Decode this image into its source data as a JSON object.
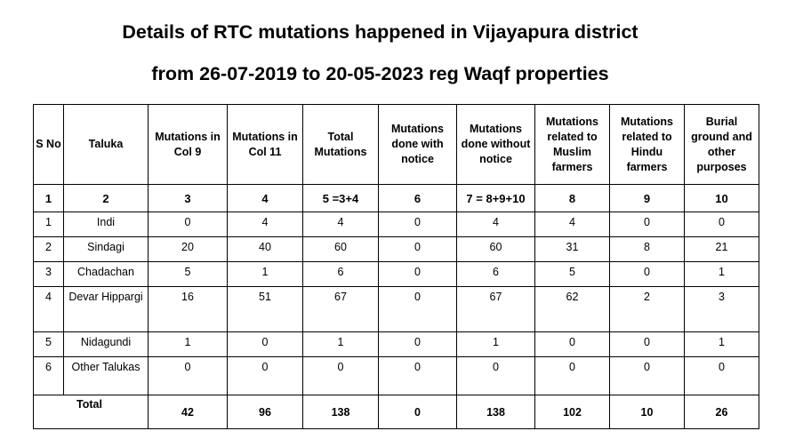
{
  "title_line1": "Details of RTC mutations happened in Vijayapura district",
  "title_line2": "from 26-07-2019 to 20-05-2023 reg Waqf properties",
  "headers": [
    "S No",
    "Taluka",
    "Mutations in Col 9",
    "Mutations in Col 11",
    "Total Mutations",
    "Mutations done with notice",
    "Mutations done without notice",
    "Mutations related to Muslim farmers",
    "Mutations related to Hindu farmers",
    "Burial ground and other purposes"
  ],
  "column_numbers": [
    "1",
    "2",
    "3",
    "4",
    "5 =3+4",
    "6",
    "7 = 8+9+10",
    "8",
    "9",
    "10"
  ],
  "rows": [
    {
      "sno": "1",
      "taluka": "Indi",
      "col9": "0",
      "col11": "4",
      "total": "4",
      "with_notice": "0",
      "without_notice": "4",
      "muslim": "4",
      "hindu": "0",
      "burial": "0"
    },
    {
      "sno": "2",
      "taluka": "Sindagi",
      "col9": "20",
      "col11": "40",
      "total": "60",
      "with_notice": "0",
      "without_notice": "60",
      "muslim": "31",
      "hindu": "8",
      "burial": "21"
    },
    {
      "sno": "3",
      "taluka": "Chadachan",
      "col9": "5",
      "col11": "1",
      "total": "6",
      "with_notice": "0",
      "without_notice": "6",
      "muslim": "5",
      "hindu": "0",
      "burial": "1"
    },
    {
      "sno": "4",
      "taluka": "Devar Hippargi",
      "col9": "16",
      "col11": "51",
      "total": "67",
      "with_notice": "0",
      "without_notice": "67",
      "muslim": "62",
      "hindu": "2",
      "burial": "3"
    },
    {
      "sno": "5",
      "taluka": "Nidagundi",
      "col9": "1",
      "col11": "0",
      "total": "1",
      "with_notice": "0",
      "without_notice": "1",
      "muslim": "0",
      "hindu": "0",
      "burial": "1"
    },
    {
      "sno": "6",
      "taluka": "Other Talukas",
      "col9": "0",
      "col11": "0",
      "total": "0",
      "with_notice": "0",
      "without_notice": "0",
      "muslim": "0",
      "hindu": "0",
      "burial": "0"
    }
  ],
  "total": {
    "label": "Total",
    "col9": "42",
    "col11": "96",
    "total": "138",
    "with_notice": "0",
    "without_notice": "138",
    "muslim": "102",
    "hindu": "10",
    "burial": "26"
  }
}
